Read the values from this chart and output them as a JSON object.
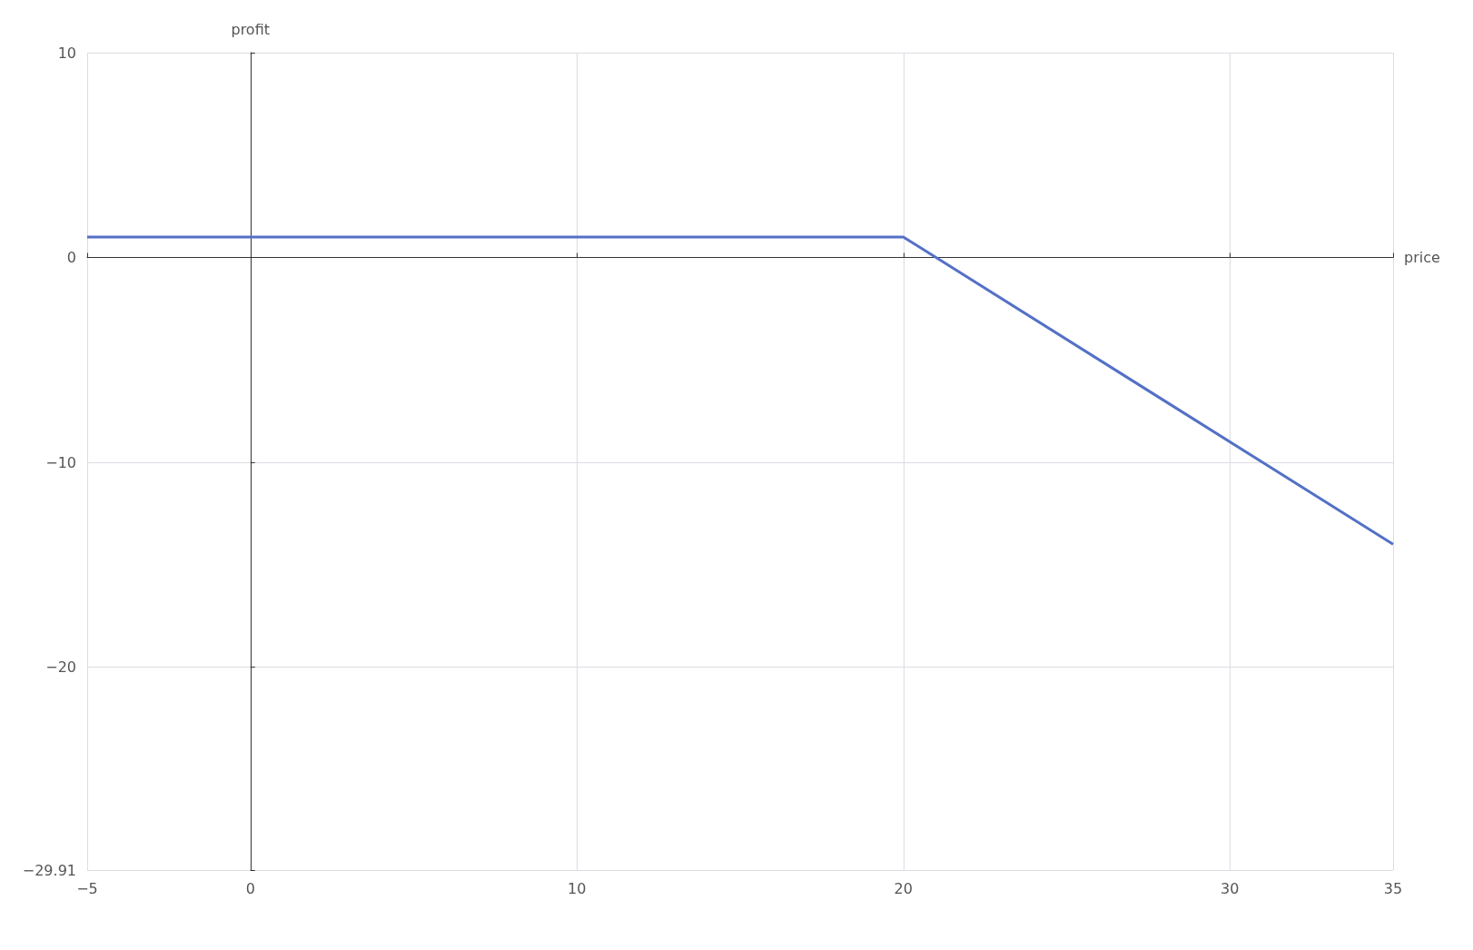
{
  "chart_data": {
    "type": "line",
    "xlabel": "price",
    "ylabel": "profit",
    "x": [
      -5,
      20,
      35
    ],
    "series": [
      {
        "color": "#5470c6",
        "values": [
          1,
          1,
          -14
        ]
      }
    ],
    "xlim": [
      -5,
      35
    ],
    "xticks": [
      -5,
      0,
      10,
      20,
      30,
      35
    ],
    "ylim": [
      -29.91,
      10
    ],
    "yticks": [
      -29.91,
      -20,
      -10,
      0,
      10
    ],
    "grid": true,
    "marker": "none",
    "line_style": "solid"
  }
}
